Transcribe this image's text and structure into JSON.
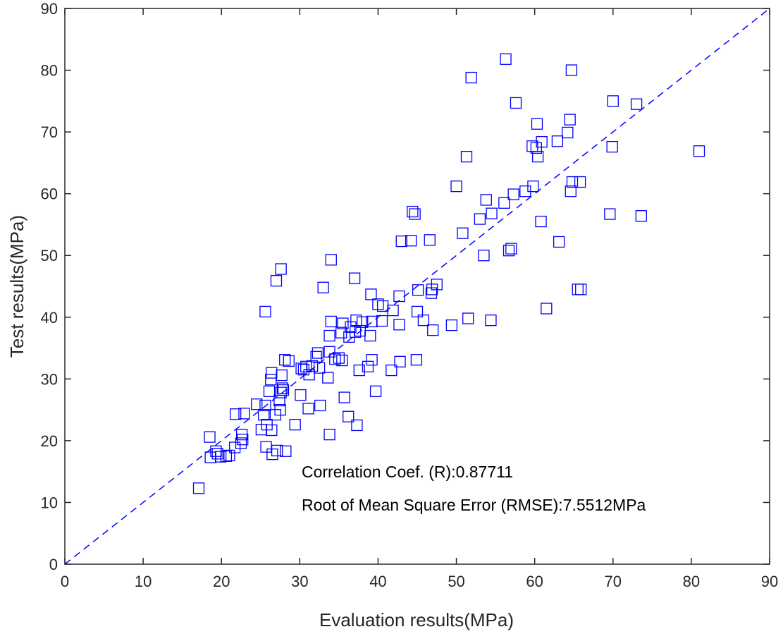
{
  "chart_data": {
    "type": "scatter",
    "title": "",
    "xlabel": "Evaluation results(MPa)",
    "ylabel": "Test results(MPa)",
    "xlim": [
      0,
      90
    ],
    "ylim": [
      0,
      90
    ],
    "xticks": [
      "0",
      "10",
      "20",
      "30",
      "40",
      "50",
      "60",
      "70",
      "80",
      "90"
    ],
    "yticks": [
      "0",
      "10",
      "20",
      "30",
      "40",
      "50",
      "60",
      "70",
      "80",
      "90"
    ],
    "grid": false,
    "marker": "square",
    "marker_color": "#0000ff",
    "reference_line": {
      "from": [
        0,
        0
      ],
      "to": [
        90,
        90
      ],
      "style": "dashed",
      "color": "#0000ff"
    },
    "annotations": [
      "Correlation Coef. (R):0.87711",
      "Root of Mean Square Error (RMSE):7.5512MPa"
    ],
    "points": [
      [
        17.1,
        12.3
      ],
      [
        18.5,
        20.6
      ],
      [
        18.6,
        17.3
      ],
      [
        19.3,
        18.3
      ],
      [
        19.5,
        17.9
      ],
      [
        19.9,
        17.4
      ],
      [
        20.6,
        17.5
      ],
      [
        21.0,
        17.6
      ],
      [
        21.7,
        18.9
      ],
      [
        21.8,
        24.3
      ],
      [
        22.5,
        19.6
      ],
      [
        22.7,
        20.2
      ],
      [
        22.9,
        24.4
      ],
      [
        22.6,
        21.0
      ],
      [
        24.5,
        25.9
      ],
      [
        25.1,
        21.8
      ],
      [
        25.4,
        24.2
      ],
      [
        25.6,
        25.7
      ],
      [
        25.7,
        19.0
      ],
      [
        25.8,
        22.6
      ],
      [
        26.1,
        28.0
      ],
      [
        26.3,
        29.9
      ],
      [
        26.4,
        31.0
      ],
      [
        26.4,
        21.7
      ],
      [
        26.5,
        17.8
      ],
      [
        26.9,
        24.2
      ],
      [
        27.1,
        18.4
      ],
      [
        27.4,
        26.5
      ],
      [
        27.5,
        25.0
      ],
      [
        27.6,
        27.8
      ],
      [
        27.7,
        30.6
      ],
      [
        27.8,
        28.5
      ],
      [
        27.9,
        28.2
      ],
      [
        28.1,
        33.1
      ],
      [
        28.2,
        18.3
      ],
      [
        28.6,
        32.9
      ],
      [
        25.6,
        40.9
      ],
      [
        27.0,
        45.9
      ],
      [
        27.6,
        47.8
      ],
      [
        29.4,
        22.6
      ],
      [
        30.1,
        27.4
      ],
      [
        30.2,
        31.7
      ],
      [
        30.5,
        31.5
      ],
      [
        30.8,
        32.0
      ],
      [
        31.2,
        30.7
      ],
      [
        31.1,
        25.2
      ],
      [
        31.6,
        32.1
      ],
      [
        32.1,
        33.6
      ],
      [
        32.3,
        34.2
      ],
      [
        32.5,
        31.8
      ],
      [
        32.6,
        25.7
      ],
      [
        33.0,
        44.8
      ],
      [
        33.6,
        30.2
      ],
      [
        33.8,
        34.4
      ],
      [
        33.8,
        21.0
      ],
      [
        33.8,
        37.0
      ],
      [
        34.0,
        39.3
      ],
      [
        34.0,
        49.3
      ],
      [
        34.5,
        33.2
      ],
      [
        35.0,
        33.4
      ],
      [
        35.3,
        37.5
      ],
      [
        35.4,
        33.0
      ],
      [
        35.7,
        27.0
      ],
      [
        35.5,
        39.0
      ],
      [
        36.2,
        23.9
      ],
      [
        36.3,
        36.8
      ],
      [
        36.5,
        38.4
      ],
      [
        37.0,
        46.3
      ],
      [
        37.1,
        37.6
      ],
      [
        37.2,
        39.5
      ],
      [
        37.3,
        22.5
      ],
      [
        37.6,
        31.4
      ],
      [
        37.7,
        37.8
      ],
      [
        38.0,
        39.2
      ],
      [
        38.7,
        32.0
      ],
      [
        39.0,
        37.0
      ],
      [
        39.1,
        43.7
      ],
      [
        39.2,
        33.1
      ],
      [
        39.2,
        39.3
      ],
      [
        39.7,
        28.0
      ],
      [
        40.0,
        42.1
      ],
      [
        40.5,
        39.4
      ],
      [
        40.6,
        41.8
      ],
      [
        41.7,
        31.4
      ],
      [
        41.9,
        41.1
      ],
      [
        42.7,
        43.4
      ],
      [
        42.7,
        38.8
      ],
      [
        42.8,
        32.8
      ],
      [
        43.0,
        52.3
      ],
      [
        44.2,
        52.4
      ],
      [
        44.4,
        57.1
      ],
      [
        44.7,
        56.7
      ],
      [
        44.9,
        33.1
      ],
      [
        45.0,
        40.9
      ],
      [
        45.1,
        44.4
      ],
      [
        45.8,
        39.5
      ],
      [
        46.6,
        52.5
      ],
      [
        46.8,
        43.9
      ],
      [
        46.9,
        44.5
      ],
      [
        47.0,
        37.9
      ],
      [
        47.5,
        45.3
      ],
      [
        49.4,
        38.7
      ],
      [
        50.0,
        61.2
      ],
      [
        50.8,
        53.6
      ],
      [
        51.3,
        66.0
      ],
      [
        51.5,
        39.8
      ],
      [
        51.9,
        78.8
      ],
      [
        53.0,
        55.9
      ],
      [
        53.5,
        50.0
      ],
      [
        53.8,
        59.0
      ],
      [
        54.4,
        39.5
      ],
      [
        54.5,
        56.8
      ],
      [
        56.1,
        58.5
      ],
      [
        56.3,
        81.8
      ],
      [
        56.7,
        50.8
      ],
      [
        57.0,
        51.1
      ],
      [
        57.3,
        59.9
      ],
      [
        57.6,
        74.7
      ],
      [
        58.8,
        60.4
      ],
      [
        59.7,
        67.7
      ],
      [
        59.8,
        61.2
      ],
      [
        60.2,
        67.4
      ],
      [
        60.3,
        71.3
      ],
      [
        60.4,
        66.0
      ],
      [
        60.8,
        55.5
      ],
      [
        60.9,
        68.4
      ],
      [
        61.5,
        41.4
      ],
      [
        62.9,
        68.5
      ],
      [
        63.1,
        52.2
      ],
      [
        64.2,
        69.9
      ],
      [
        64.5,
        72.0
      ],
      [
        64.6,
        60.4
      ],
      [
        64.7,
        80.0
      ],
      [
        64.8,
        61.9
      ],
      [
        65.5,
        44.5
      ],
      [
        65.8,
        61.9
      ],
      [
        65.9,
        44.5
      ],
      [
        69.6,
        56.7
      ],
      [
        69.9,
        67.6
      ],
      [
        70.0,
        75.0
      ],
      [
        73.0,
        74.5
      ],
      [
        73.6,
        56.4
      ],
      [
        81.0,
        66.9
      ]
    ]
  }
}
